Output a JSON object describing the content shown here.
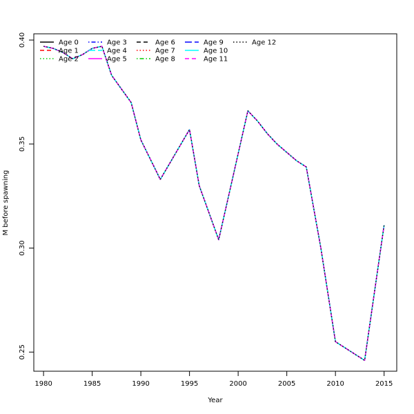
{
  "chart_data": {
    "type": "line",
    "title": "",
    "xlabel": "Year",
    "ylabel": "M before spawning",
    "xlim": [
      1979,
      2016.3
    ],
    "ylim": [
      0.2408,
      0.403
    ],
    "x_ticks": [
      1980,
      1985,
      1990,
      1995,
      2000,
      2005,
      2010,
      2015
    ],
    "y_ticks": [
      0.25,
      0.3,
      0.35,
      0.4
    ],
    "y_tick_labels": [
      "0.25",
      "0.30",
      "0.35",
      "0.40"
    ],
    "grid": false,
    "legend_position": "top-left",
    "note": "",
    "x": [
      1980,
      1981,
      1982,
      1983,
      1984,
      1985,
      1986,
      1987,
      1988,
      1989,
      1990,
      1991,
      1992,
      1993,
      1994,
      1995,
      1996,
      1997,
      1998,
      1999,
      2000,
      2001,
      2002,
      2003,
      2004,
      2005,
      2006,
      2007,
      2008,
      2009,
      2010,
      2011,
      2012,
      2013,
      2014,
      2015
    ],
    "shared_values": [
      0.397,
      0.396,
      0.394,
      0.391,
      0.393,
      0.396,
      0.397,
      0.383,
      0.37,
      0.352,
      0.333,
      0.341,
      0.349,
      0.357,
      0.33,
      0.304,
      0.335,
      0.366,
      0.361,
      0.355,
      0.35,
      0.346,
      0.342,
      0.339,
      0.3,
      0.255,
      0.252,
      0.249,
      0.246,
      0.311
    ],
    "shared_x": [
      1980,
      1981,
      1982,
      1983,
      1984,
      1985,
      1986,
      1987,
      1989,
      1990,
      1992,
      1993,
      1994,
      1995,
      1996,
      1998,
      1999.5,
      2001,
      2002,
      2003,
      2004,
      2005,
      2006,
      2007,
      2008.5,
      2010,
      2011,
      2012,
      2013,
      2015
    ],
    "series": [
      {
        "name": "Age 0",
        "color": "#000000",
        "dash": "solid"
      },
      {
        "name": "Age 1",
        "color": "#ff0000",
        "dash": "dashed"
      },
      {
        "name": "Age 2",
        "color": "#00cd00",
        "dash": "dotted"
      },
      {
        "name": "Age 3",
        "color": "#0000ff",
        "dash": "dotdash"
      },
      {
        "name": "Age 4",
        "color": "#00ffff",
        "dash": "longdash"
      },
      {
        "name": "Age 5",
        "color": "#ff00ff",
        "dash": "solid"
      },
      {
        "name": "Age 6",
        "color": "#000000",
        "dash": "dashed"
      },
      {
        "name": "Age 7",
        "color": "#ff0000",
        "dash": "dotted"
      },
      {
        "name": "Age 8",
        "color": "#00cd00",
        "dash": "dotdash"
      },
      {
        "name": "Age 9",
        "color": "#0000ff",
        "dash": "longdash"
      },
      {
        "name": "Age 10",
        "color": "#00ffff",
        "dash": "solid"
      },
      {
        "name": "Age 11",
        "color": "#ff00ff",
        "dash": "dashed"
      },
      {
        "name": "Age 12",
        "color": "#000000",
        "dash": "dotted"
      }
    ]
  }
}
